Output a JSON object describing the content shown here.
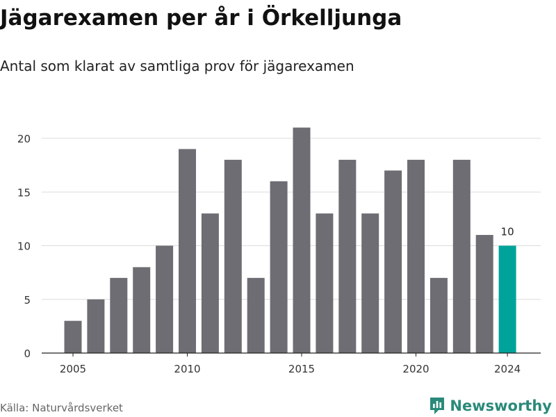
{
  "chart_data": {
    "type": "bar",
    "title": "Jägarexamen per år i Örkelljunga",
    "subtitle": "Antal som klarat av samtliga prov för jägarexamen",
    "x": [
      2005,
      2006,
      2007,
      2008,
      2009,
      2010,
      2011,
      2012,
      2013,
      2014,
      2015,
      2016,
      2017,
      2018,
      2019,
      2020,
      2021,
      2022,
      2023,
      2024
    ],
    "values": [
      3,
      5,
      7,
      8,
      10,
      19,
      13,
      18,
      7,
      16,
      21,
      13,
      18,
      13,
      17,
      18,
      7,
      18,
      11,
      10
    ],
    "xticks": [
      "2005",
      "2010",
      "2015",
      "2020",
      "2024"
    ],
    "yticks": [
      0,
      5,
      10,
      15,
      20
    ],
    "ylim": [
      0,
      22
    ],
    "grid": "horizontal",
    "bar_color": "#6e6d73",
    "highlight_color": "#00a39a",
    "highlight_x": 2024,
    "annotation": {
      "x": 2024,
      "text": "10"
    }
  },
  "footer": {
    "source": "Källa: Naturvårdsverket",
    "logo_text": "Newsworthy",
    "logo_icon": "bar-chart-icon",
    "logo_color": "#2a8a7a"
  }
}
